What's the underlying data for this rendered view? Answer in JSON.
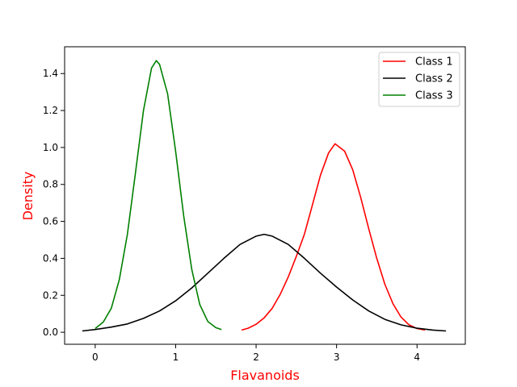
{
  "chart_data": {
    "type": "line",
    "xlabel": "Flavanoids",
    "ylabel": "Density",
    "label_color": "#ff0000",
    "xlim": [
      -0.38,
      4.6
    ],
    "ylim": [
      -0.065,
      1.545
    ],
    "xticks": [
      0,
      1,
      2,
      3,
      4
    ],
    "xtick_labels": [
      "0",
      "1",
      "2",
      "3",
      "4"
    ],
    "yticks": [
      0.0,
      0.2,
      0.4,
      0.6,
      0.8,
      1.0,
      1.2,
      1.4
    ],
    "ytick_labels": [
      "0.0",
      "0.2",
      "0.4",
      "0.6",
      "0.8",
      "1.0",
      "1.2",
      "1.4"
    ],
    "grid": false,
    "legend_position": "top-right",
    "series": [
      {
        "name": "Class 1",
        "color": "#ff0000",
        "x": [
          1.82,
          1.9,
          2.0,
          2.1,
          2.2,
          2.3,
          2.4,
          2.5,
          2.6,
          2.7,
          2.8,
          2.9,
          2.98,
          3.1,
          3.2,
          3.3,
          3.4,
          3.5,
          3.6,
          3.7,
          3.8,
          3.9,
          4.0,
          4.1
        ],
        "y": [
          0.012,
          0.022,
          0.043,
          0.078,
          0.13,
          0.205,
          0.3,
          0.41,
          0.53,
          0.69,
          0.85,
          0.97,
          1.02,
          0.98,
          0.88,
          0.73,
          0.56,
          0.4,
          0.26,
          0.155,
          0.083,
          0.04,
          0.02,
          0.012
        ]
      },
      {
        "name": "Class 2",
        "color": "#000000",
        "x": [
          -0.16,
          0.0,
          0.2,
          0.4,
          0.6,
          0.8,
          1.0,
          1.2,
          1.4,
          1.6,
          1.8,
          2.0,
          2.1,
          2.2,
          2.4,
          2.6,
          2.8,
          3.0,
          3.2,
          3.4,
          3.6,
          3.8,
          4.0,
          4.2,
          4.36
        ],
        "y": [
          0.007,
          0.015,
          0.028,
          0.045,
          0.075,
          0.115,
          0.17,
          0.24,
          0.32,
          0.4,
          0.475,
          0.52,
          0.53,
          0.52,
          0.475,
          0.4,
          0.32,
          0.245,
          0.175,
          0.115,
          0.07,
          0.04,
          0.022,
          0.012,
          0.007
        ]
      },
      {
        "name": "Class 3",
        "color": "#008000",
        "x": [
          0.0,
          0.1,
          0.2,
          0.3,
          0.4,
          0.5,
          0.6,
          0.7,
          0.76,
          0.8,
          0.9,
          1.0,
          1.1,
          1.2,
          1.3,
          1.4,
          1.5,
          1.57
        ],
        "y": [
          0.02,
          0.055,
          0.13,
          0.285,
          0.53,
          0.86,
          1.2,
          1.43,
          1.47,
          1.45,
          1.29,
          0.98,
          0.63,
          0.34,
          0.15,
          0.058,
          0.025,
          0.015
        ]
      }
    ]
  }
}
